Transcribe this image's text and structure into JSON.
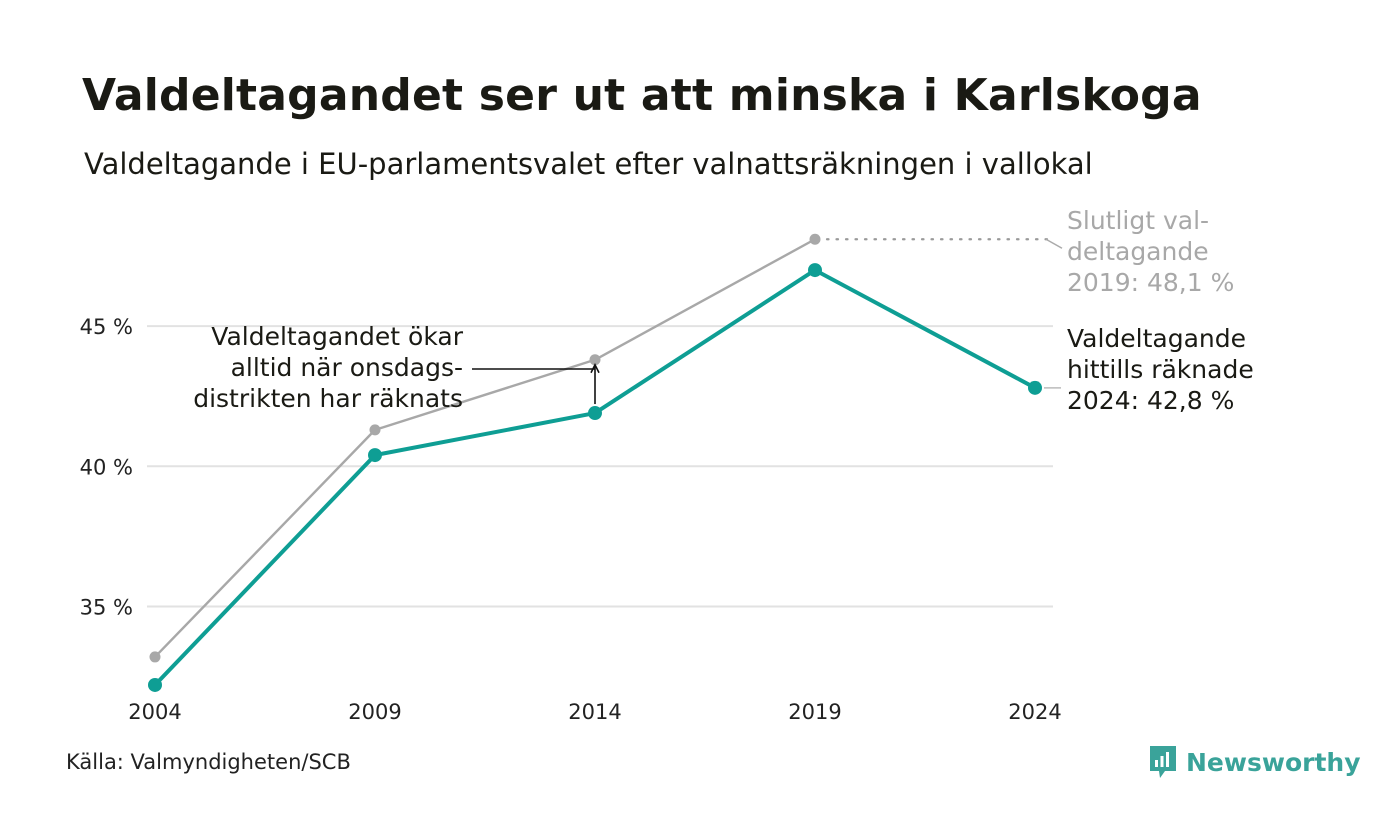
{
  "title": "Valdeltagandet ser ut att minska i Karlskoga",
  "subtitle": "Valdeltagande i EU-parlamentsvalet efter valnattsräkningen i vallokal",
  "source": "Källa: Valmyndigheten/SCB",
  "brand": {
    "name": "Newsworthy",
    "icon": "newsworthy-logo-icon"
  },
  "colors": {
    "accent": "#0e9e94",
    "final": "#a8a8a8",
    "grid": "#e2e2e2",
    "text": "#1a1a14"
  },
  "chart_data": {
    "type": "line",
    "x": [
      2004,
      2009,
      2014,
      2019,
      2024
    ],
    "x_tick_labels": [
      "2004",
      "2009",
      "2014",
      "2019",
      "2024"
    ],
    "y_ticks": [
      35,
      40,
      45
    ],
    "y_tick_labels": [
      "35 %",
      "40 %",
      "45 %"
    ],
    "ylim": [
      31.2,
      49.5
    ],
    "grid": true,
    "series": [
      {
        "key": "final",
        "values": [
          33.2,
          41.3,
          43.8,
          48.1,
          null
        ],
        "color": "#a8a8a8"
      },
      {
        "key": "counted",
        "values": [
          32.2,
          40.4,
          41.9,
          47.0,
          42.8
        ],
        "color": "#0e9e94"
      }
    ],
    "annotations": {
      "final_2019": [
        "Slutligt val-",
        "deltagande",
        "2019: 48,1 %"
      ],
      "counted_2024": [
        "Valdeltagande",
        "hittills räknade",
        "2024: 42,8 %"
      ],
      "wednesday_note": [
        "Valdeltagandet ökar",
        "alltid när onsdags-",
        "distrikten har räknats"
      ]
    }
  }
}
